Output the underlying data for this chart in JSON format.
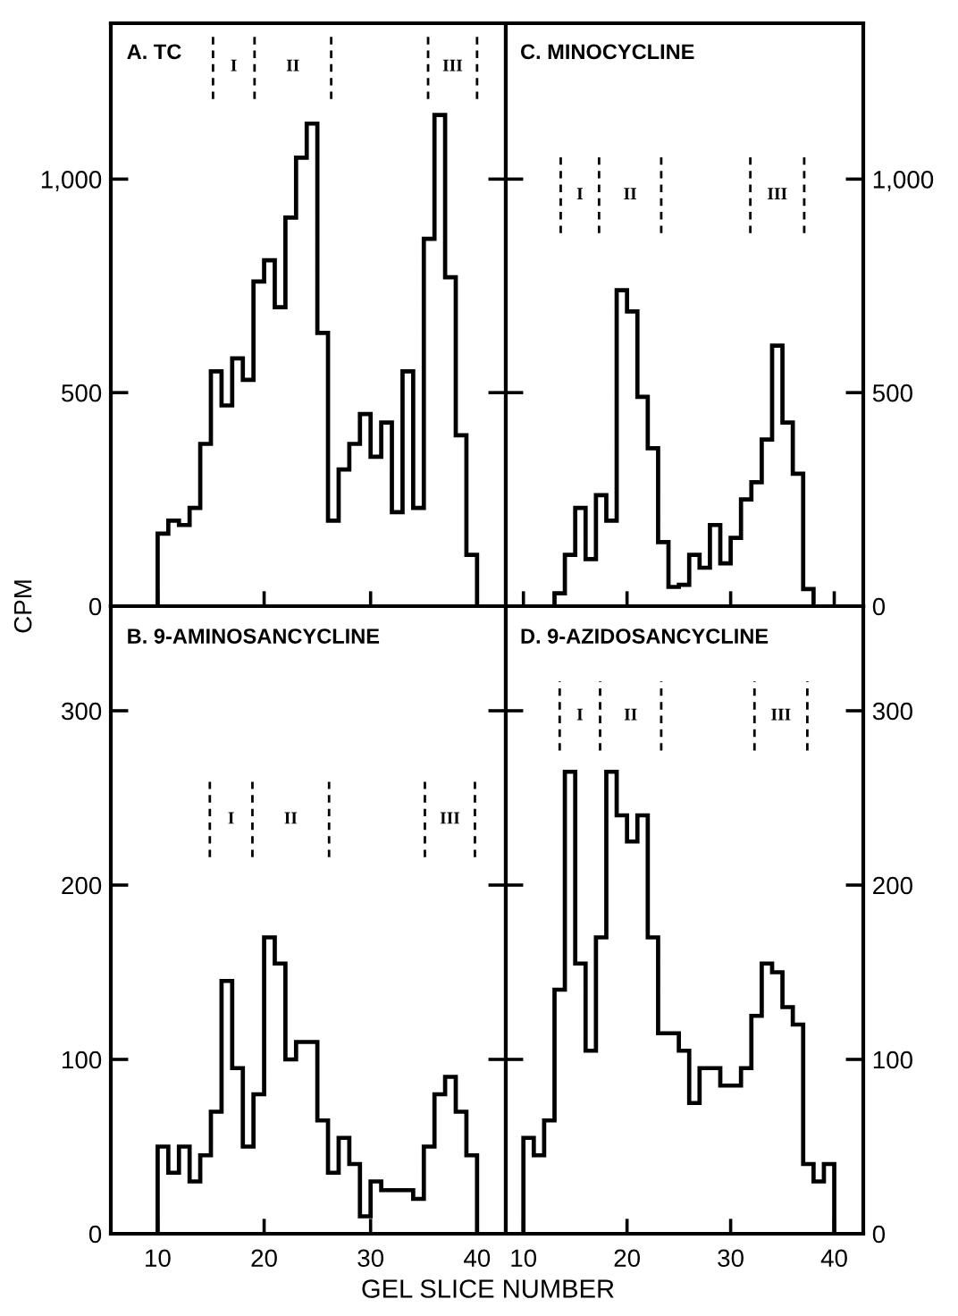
{
  "chart_data": [
    {
      "type": "histogram",
      "title": "A. TC",
      "ylabel": "CPM",
      "color": "#000000",
      "bins": [
        10,
        11,
        12,
        13,
        14,
        15,
        16,
        17,
        18,
        19,
        20,
        21,
        22,
        23,
        24,
        25,
        26,
        27,
        28,
        29,
        30,
        31,
        32,
        33,
        34,
        35,
        36,
        37,
        38,
        39,
        40
      ],
      "values": [
        170,
        200,
        190,
        230,
        380,
        550,
        470,
        580,
        530,
        760,
        810,
        700,
        910,
        1050,
        1130,
        640,
        200,
        320,
        380,
        450,
        350,
        430,
        220,
        550,
        230,
        860,
        1150,
        770,
        400,
        120
      ],
      "xlim": [
        5.6,
        42.7
      ],
      "ylim": [
        0,
        1365
      ],
      "xticks": [
        {
          "value": 10,
          "label": null
        },
        {
          "value": 20,
          "label": null
        },
        {
          "value": 30,
          "label": null
        },
        {
          "value": 40,
          "label": null
        }
      ],
      "yticks": [
        0,
        500,
        {
          "value": 1000,
          "label": "1,000"
        }
      ],
      "tick_labels": "y",
      "ref_lines": [
        {
          "axis": "x",
          "value": 15.2,
          "label": "I",
          "line_style": "dashed"
        },
        {
          "axis": "x",
          "value": 19.1,
          "label": "II",
          "line_style": "dashed"
        },
        {
          "axis": "x",
          "value": 26.3,
          "line_style": "dashed"
        },
        {
          "axis": "x",
          "value": 35.4,
          "label": "III",
          "line_style": "dashed"
        },
        {
          "axis": "x",
          "value": 40,
          "line_style": "dashed"
        }
      ]
    },
    {
      "type": "histogram",
      "title": "C. MINOCYCLINE",
      "color": "#000000",
      "bins": [
        13,
        14,
        15,
        16,
        17,
        18,
        19,
        20,
        21,
        22,
        23,
        24,
        25,
        26,
        27,
        28,
        29,
        30,
        31,
        32,
        33,
        34,
        35,
        36,
        37,
        38
      ],
      "values": [
        30,
        120,
        230,
        110,
        260,
        200,
        740,
        690,
        490,
        370,
        150,
        45,
        50,
        120,
        90,
        190,
        100,
        160,
        250,
        290,
        390,
        610,
        430,
        310,
        40
      ],
      "xlim": [
        8.3,
        42.8
      ],
      "ylim": [
        0,
        1365
      ],
      "xticks": [
        {
          "value": 10,
          "label": null
        },
        {
          "value": 20,
          "label": null
        },
        {
          "value": 30,
          "label": null
        },
        {
          "value": 40,
          "label": null
        }
      ],
      "yticks": [
        0,
        500,
        {
          "value": 1000,
          "label": "1,000"
        }
      ],
      "tick_labels": "y",
      "ref_lines": [
        {
          "axis": "x",
          "value": 13.6,
          "label": "I",
          "line_style": "dashed"
        },
        {
          "axis": "x",
          "value": 17.3,
          "label": "II",
          "line_style": "dashed"
        },
        {
          "axis": "x",
          "value": 23.3,
          "line_style": "dashed"
        },
        {
          "axis": "x",
          "value": 31.9,
          "label": "III",
          "line_style": "dashed"
        },
        {
          "axis": "x",
          "value": 37.1,
          "line_style": "dashed"
        }
      ]
    },
    {
      "type": "histogram",
      "title": "B. 9-AMINOSANCYCLINE",
      "xlabel": "GEL SLICE NUMBER",
      "color": "#000000",
      "bins": [
        10,
        11,
        12,
        13,
        14,
        15,
        16,
        17,
        18,
        19,
        20,
        21,
        22,
        23,
        24,
        25,
        26,
        27,
        28,
        29,
        30,
        31,
        32,
        33,
        34,
        35,
        36,
        37,
        38,
        39,
        40
      ],
      "values": [
        50,
        35,
        50,
        30,
        45,
        70,
        145,
        95,
        50,
        80,
        170,
        155,
        100,
        110,
        110,
        65,
        35,
        55,
        40,
        10,
        30,
        25,
        25,
        25,
        20,
        50,
        80,
        90,
        70,
        45
      ],
      "xlim": [
        5.6,
        42.7
      ],
      "ylim": [
        0,
        360
      ],
      "xticks": [
        10,
        20,
        30,
        40
      ],
      "yticks": [
        0,
        100,
        200,
        300
      ],
      "ref_lines": [
        {
          "axis": "x",
          "value": 14.9,
          "label": "I",
          "line_style": "dashed"
        },
        {
          "axis": "x",
          "value": 18.9,
          "label": "II",
          "line_style": "dashed"
        },
        {
          "axis": "x",
          "value": 26.1,
          "line_style": "dashed"
        },
        {
          "axis": "x",
          "value": 35.1,
          "label": "III",
          "line_style": "dashed"
        },
        {
          "axis": "x",
          "value": 39.8,
          "line_style": "dashed"
        }
      ]
    },
    {
      "type": "histogram",
      "title": "D. 9-AZIDOSANCYCLINE",
      "color": "#000000",
      "bins": [
        10,
        11,
        12,
        13,
        14,
        15,
        16,
        17,
        18,
        19,
        20,
        21,
        22,
        23,
        24,
        25,
        26,
        27,
        28,
        29,
        30,
        31,
        32,
        33,
        34,
        35,
        36,
        37,
        38,
        39,
        40
      ],
      "values": [
        55,
        45,
        65,
        140,
        265,
        155,
        105,
        170,
        265,
        240,
        225,
        240,
        170,
        115,
        115,
        105,
        75,
        95,
        95,
        85,
        85,
        95,
        125,
        155,
        150,
        130,
        120,
        40,
        30,
        40
      ],
      "xlim": [
        8.3,
        42.8
      ],
      "ylim": [
        0,
        360
      ],
      "xticks": [
        10,
        20,
        30,
        40
      ],
      "yticks": [
        0,
        100,
        200,
        300
      ],
      "ref_lines": [
        {
          "axis": "x",
          "value": 13.5,
          "label": "I",
          "line_style": "dashed"
        },
        {
          "axis": "x",
          "value": 17.4,
          "label": "II",
          "line_style": "dashed"
        },
        {
          "axis": "x",
          "value": 23.3,
          "line_style": "dashed"
        },
        {
          "axis": "x",
          "value": 32.3,
          "label": "III",
          "line_style": "dashed"
        },
        {
          "axis": "x",
          "value": 37.4,
          "line_style": "dashed"
        }
      ]
    }
  ]
}
